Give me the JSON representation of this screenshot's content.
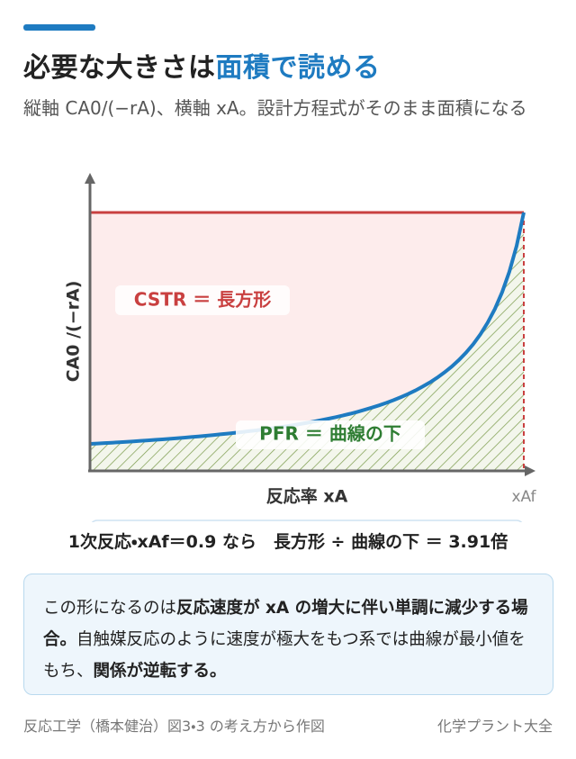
{
  "header": {
    "title_plain": "必要な大きさは",
    "title_accent": "面積で読める",
    "subtitle": "縦軸 CA0/(−rA)、横軸 xA。設計方程式がそのまま面積になる"
  },
  "diagram": {
    "y_label": "CA0 /(−rA)",
    "cstr_label": "CSTR ＝ 長方形",
    "pfr_label": "PFR ＝ 曲線の下",
    "x_label": "反応率 xA",
    "x_end_label": "xAf"
  },
  "result": "1次反応・xAf＝0.9 なら　長方形 ÷ 曲線の下 ＝ 3.91倍",
  "note": {
    "parts": [
      "この形になるのは",
      "反応速度が xA の増大に伴い単調に減少する場合。",
      "自触媒反応のように速度が極大をもつ系では曲線が最小値をもち、",
      "関係が逆転する。"
    ]
  },
  "footer": {
    "source": "反応工学（橋本健治）図3・3 の考え方から作図",
    "brand": "化学プラント大全"
  }
}
